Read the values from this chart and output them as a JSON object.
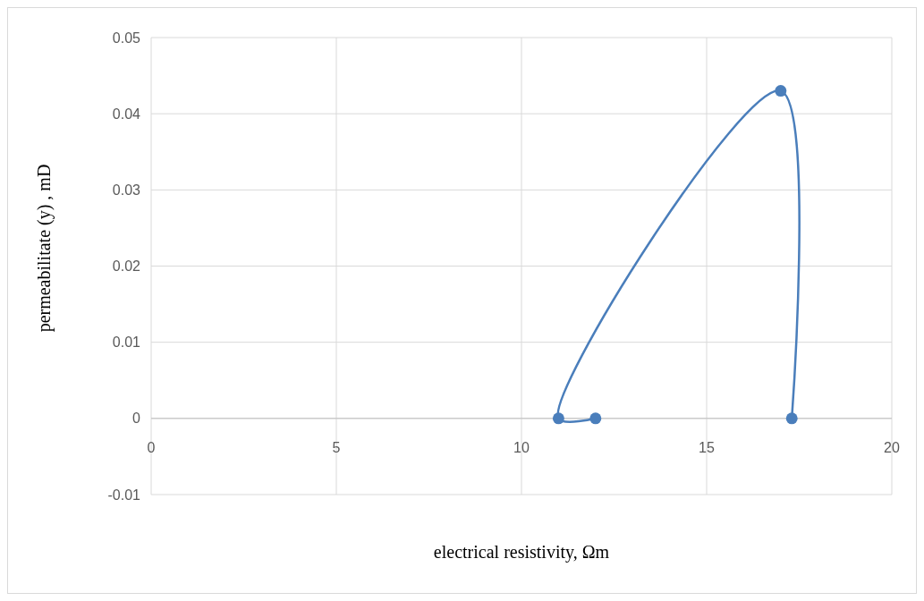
{
  "chart_data": {
    "type": "line",
    "xlabel": "electrical resistivity, Ωm",
    "ylabel": "permeabilitate (y) , mD",
    "series": [
      {
        "color": "#4a7ebb",
        "x": [
          12,
          11,
          17,
          17.3
        ],
        "values": [
          0,
          0,
          0.043,
          0
        ]
      }
    ],
    "xlim": [
      0,
      20
    ],
    "xticks": [
      0,
      5,
      10,
      15,
      20
    ],
    "ylim": [
      -0.01,
      0.05
    ],
    "yticks": [
      -0.01,
      0,
      0.01,
      0.02,
      0.03,
      0.04,
      0.05
    ],
    "grid": true,
    "marker": "circle",
    "line_style": "solid"
  }
}
